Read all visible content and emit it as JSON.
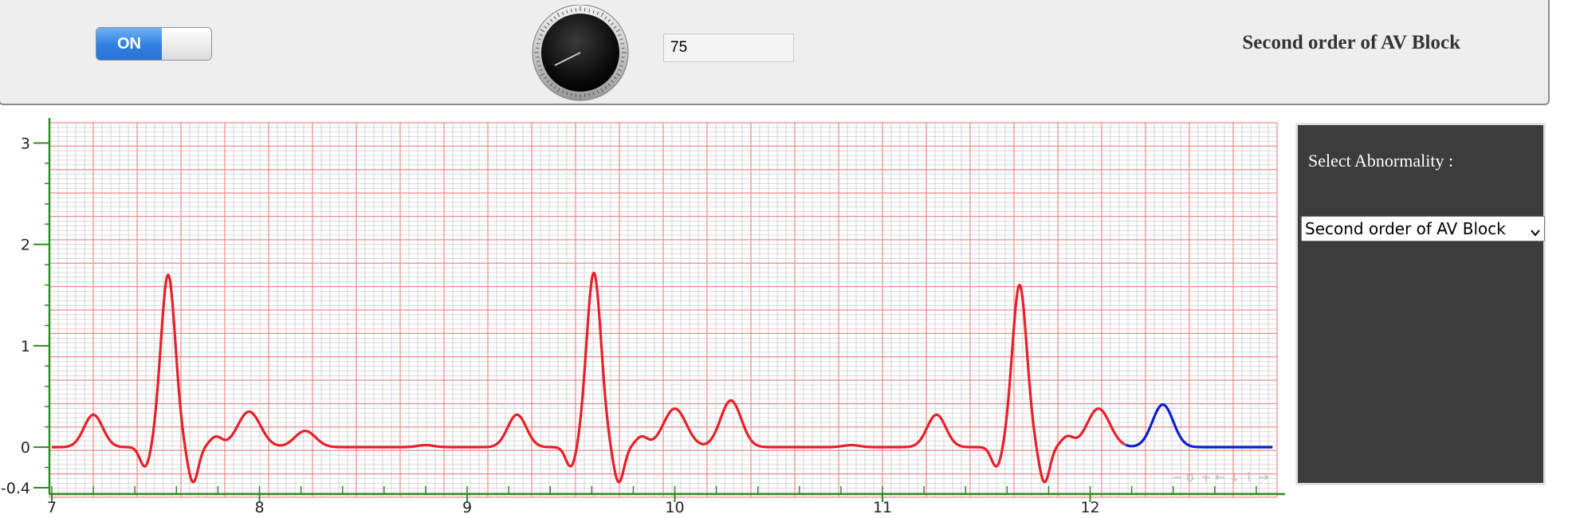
{
  "controls": {
    "toggle_label": "ON",
    "toggle_state": "on",
    "heart_rate_value": "75",
    "knob_value": 75
  },
  "header": {
    "title": "Second order of AV Block"
  },
  "sidebar": {
    "label": "Select Abnormality :",
    "selected_abnormality": "Second order of AV Block"
  },
  "chart_toolbar": {
    "icons": [
      "−",
      "o",
      "+",
      "←",
      "↓",
      "↑",
      "→"
    ]
  },
  "colors": {
    "trace_history": "#e8202a",
    "trace_live": "#0b1fd0",
    "grid_major": "#f08a8a",
    "grid_minor": "#b9b9b9",
    "axis": "#2e8b22"
  },
  "chart_data": {
    "type": "line",
    "xlim": [
      7,
      12.9
    ],
    "ylim": [
      -0.4,
      3.2
    ],
    "xticks": [
      7,
      8,
      9,
      10,
      11,
      12
    ],
    "yticks": [
      -0.4,
      0,
      1,
      2,
      3
    ],
    "grid": true,
    "beats": [
      {
        "p": 7.2,
        "r": 7.56,
        "t": 7.95,
        "r_amp": 1.7,
        "t_amp": 0.35
      },
      {
        "p": 9.24,
        "r": 9.61,
        "t": 10.0,
        "r_amp": 1.72,
        "t_amp": 0.38
      },
      {
        "p": 11.26,
        "r": 11.66,
        "t": 12.04,
        "r_amp": 1.6,
        "t_amp": 0.38
      }
    ],
    "blocked_p_waves": [
      {
        "x": 8.22,
        "amp": 0.16
      },
      {
        "x": 10.27,
        "amp": 0.46
      },
      {
        "x": 12.35,
        "amp": 0.42
      }
    ],
    "series": [
      {
        "values_note": "",
        "x_start": 7.0,
        "x_end": 12.17
      },
      {
        "values_note": "",
        "x_start": 12.17,
        "x_end": 12.88
      }
    ]
  }
}
